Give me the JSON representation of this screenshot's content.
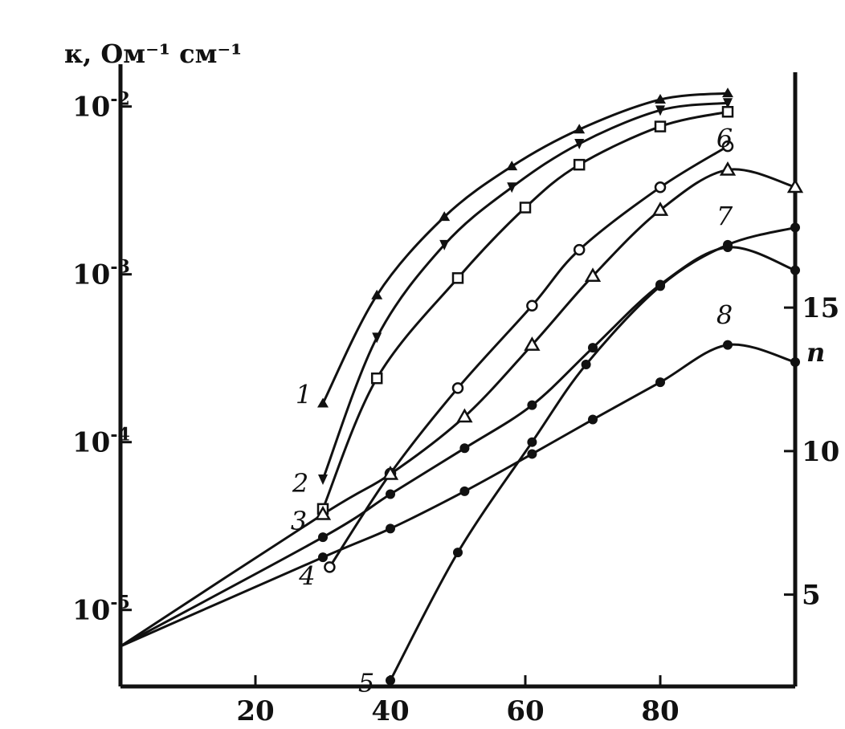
{
  "chart_data": {
    "type": "line",
    "left_axis_label": "к, Ом⁻¹ см⁻¹",
    "right_axis_label": "n",
    "x_ticks": [
      20,
      40,
      60,
      80
    ],
    "x_range": [
      0,
      100
    ],
    "left_ticks": [
      {
        "value": 1e-05,
        "label": "10",
        "exp": "-5"
      },
      {
        "value": 0.0001,
        "label": "10",
        "exp": "-4"
      },
      {
        "value": 0.001,
        "label": "10",
        "exp": "-3"
      },
      {
        "value": 0.01,
        "label": "10",
        "exp": "-2"
      }
    ],
    "left_scale": "log",
    "left_range": [
      3.5e-06,
      0.016
    ],
    "right_ticks": [
      5,
      10,
      15
    ],
    "right_range": [
      1.8,
      23.2
    ],
    "series": [
      {
        "name": "1",
        "axis": "left",
        "marker": "triangle",
        "x": [
          30,
          38,
          48,
          58,
          68,
          80,
          90
        ],
        "y": [
          0.00017,
          0.00075,
          0.0022,
          0.0044,
          0.0073,
          0.011,
          0.012
        ]
      },
      {
        "name": "2",
        "axis": "left",
        "marker": "tri-down",
        "x": [
          30,
          38,
          48,
          58,
          68,
          80,
          90
        ],
        "y": [
          6e-05,
          0.00042,
          0.0015,
          0.0033,
          0.006,
          0.0095,
          0.0105
        ]
      },
      {
        "name": "3",
        "axis": "left",
        "marker": "square",
        "x": [
          30,
          38,
          50,
          60,
          68,
          80,
          90
        ],
        "y": [
          4e-05,
          0.00024,
          0.00095,
          0.0025,
          0.0045,
          0.0076,
          0.0093
        ]
      },
      {
        "name": "4",
        "axis": "left",
        "marker": "circle",
        "x": [
          31,
          40,
          50,
          61,
          68,
          80,
          90
        ],
        "y": [
          1.8e-05,
          6.5e-05,
          0.00021,
          0.00065,
          0.0014,
          0.0033,
          0.0058
        ]
      },
      {
        "name": "5",
        "axis": "left",
        "marker": "filled-circle",
        "x": [
          40,
          50,
          61,
          69,
          80,
          90,
          100
        ],
        "y": [
          3.8e-06,
          2.2e-05,
          0.0001,
          0.00029,
          0.00085,
          0.0015,
          0.0019
        ]
      },
      {
        "name": "6",
        "axis": "right",
        "marker": "open-triangle",
        "x": [
          0,
          30,
          40,
          51,
          61,
          70,
          80,
          90,
          100
        ],
        "y": [
          3.2,
          7.8,
          9.2,
          11.2,
          13.7,
          16.1,
          18.4,
          19.8,
          19.2
        ]
      },
      {
        "name": "7",
        "axis": "right",
        "marker": "filled-circle",
        "x": [
          0,
          30,
          40,
          51,
          61,
          70,
          80,
          90,
          100
        ],
        "y": [
          3.2,
          7.0,
          8.5,
          10.1,
          11.6,
          13.6,
          15.8,
          17.1,
          16.3
        ]
      },
      {
        "name": "8",
        "axis": "right",
        "marker": "filled-circle",
        "x": [
          0,
          30,
          40,
          51,
          61,
          70,
          80,
          90,
          100
        ],
        "y": [
          3.2,
          6.3,
          7.3,
          8.6,
          9.9,
          11.1,
          12.4,
          13.7,
          13.1
        ]
      }
    ]
  }
}
